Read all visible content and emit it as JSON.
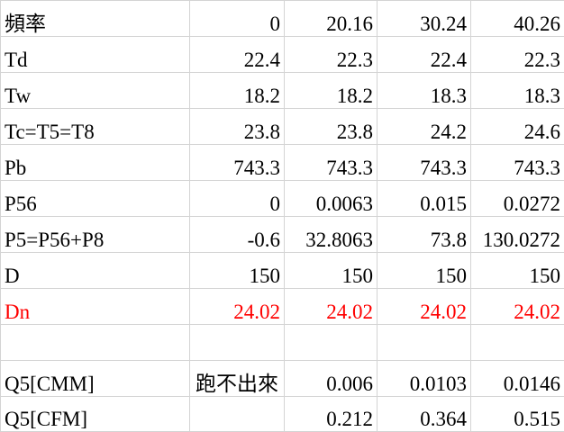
{
  "rows": [
    {
      "label": "頻率",
      "values": [
        "0",
        "20.16",
        "30.24",
        "40.26"
      ]
    },
    {
      "label": "Td",
      "values": [
        "22.4",
        "22.3",
        "22.4",
        "22.3"
      ]
    },
    {
      "label": "Tw",
      "values": [
        "18.2",
        "18.2",
        "18.3",
        "18.3"
      ]
    },
    {
      "label": "Tc=T5=T8",
      "values": [
        "23.8",
        "23.8",
        "24.2",
        "24.6"
      ]
    },
    {
      "label": "Pb",
      "values": [
        "743.3",
        "743.3",
        "743.3",
        "743.3"
      ]
    },
    {
      "label": "P56",
      "values": [
        "0",
        "0.0063",
        "0.015",
        "0.0272"
      ]
    },
    {
      "label": "P5=P56+P8",
      "values": [
        "-0.6",
        "32.8063",
        "73.8",
        "130.0272"
      ]
    },
    {
      "label": "D",
      "values": [
        "150",
        "150",
        "150",
        "150"
      ]
    },
    {
      "label": "Dn",
      "values": [
        "24.02",
        "24.02",
        "24.02",
        "24.02"
      ]
    },
    {
      "label": "",
      "values": [
        "",
        "",
        "",
        ""
      ]
    },
    {
      "label": "Q5[CMM]",
      "values": [
        "跑不出來",
        "0.006",
        "0.0103",
        "0.0146"
      ]
    },
    {
      "label": "Q5[CFM]",
      "values": [
        "",
        "0.212",
        "0.364",
        "0.515"
      ]
    }
  ],
  "colors": {
    "text": "#000000",
    "highlight": "#ff0000",
    "gridline": "#d4d4d4"
  }
}
